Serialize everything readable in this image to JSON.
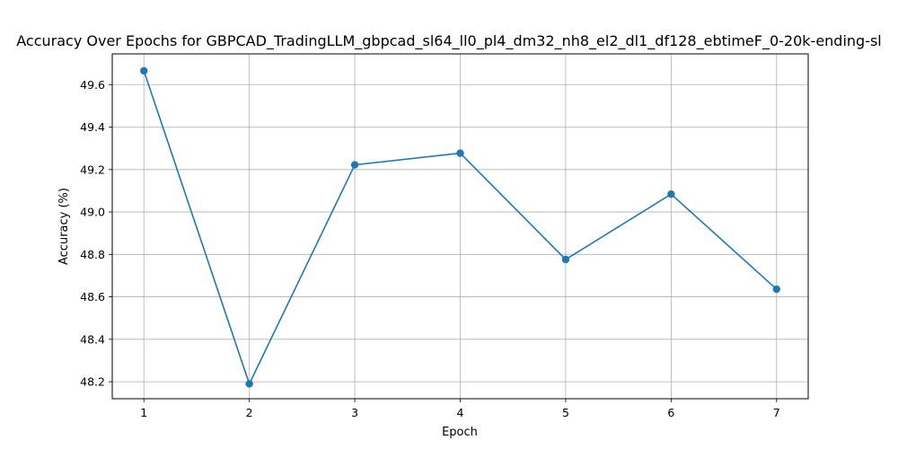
{
  "chart_data": {
    "type": "line",
    "title": "Accuracy Over Epochs for GBPCAD_TradingLLM_gbpcad_sl64_ll0_pl4_dm32_nh8_el2_dl1_df128_ebtimeF_0-20k-ending-sl",
    "xlabel": "Epoch",
    "ylabel": "Accuracy (%)",
    "x": [
      1,
      2,
      3,
      4,
      5,
      6,
      7
    ],
    "series": [
      {
        "name": "Accuracy",
        "values": [
          49.665,
          48.19,
          49.222,
          49.277,
          48.776,
          49.084,
          48.636
        ]
      }
    ],
    "xlim": [
      0.7,
      7.3
    ],
    "ylim": [
      48.12,
      49.745
    ],
    "xticks": [
      "1",
      "2",
      "3",
      "4",
      "5",
      "6",
      "7"
    ],
    "yticks": [
      "48.2",
      "48.4",
      "48.6",
      "48.8",
      "49.0",
      "49.2",
      "49.4",
      "49.6"
    ],
    "grid": true,
    "line_color": "#1f77b4",
    "axis_color": "#000000",
    "grid_color": "#b0b0b0"
  }
}
